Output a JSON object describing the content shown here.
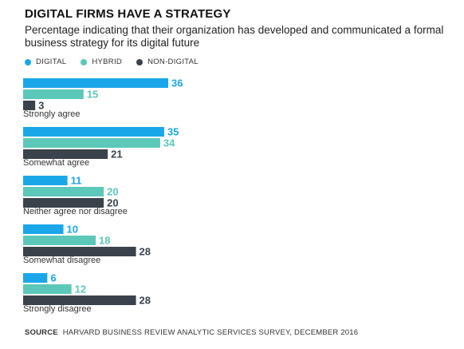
{
  "chart_data": {
    "type": "bar",
    "orientation": "horizontal",
    "title": "DIGITAL FIRMS HAVE A STRATEGY",
    "subtitle": "Percentage indicating that their organization has developed and communicated a formal business strategy for its digital future",
    "categories": [
      "Strongly agree",
      "Somewhat agree",
      "Neither agree nor disagree",
      "Somewhat disagree",
      "Strongly disagree"
    ],
    "series": [
      {
        "name": "DIGITAL",
        "color": "#1aa7ea",
        "values": [
          36,
          35,
          11,
          10,
          6
        ]
      },
      {
        "name": "HYBRID",
        "color": "#5bc8b9",
        "values": [
          15,
          34,
          20,
          18,
          12
        ]
      },
      {
        "name": "NON-DIGITAL",
        "color": "#3a434c",
        "values": [
          3,
          21,
          20,
          28,
          28
        ]
      }
    ],
    "legend_position": "top-left",
    "grid": false,
    "xlim": [
      0,
      36
    ]
  },
  "source": {
    "label": "SOURCE",
    "text": "HARVARD BUSINESS REVIEW ANALYTIC SERVICES SURVEY, DECEMBER 2016"
  }
}
